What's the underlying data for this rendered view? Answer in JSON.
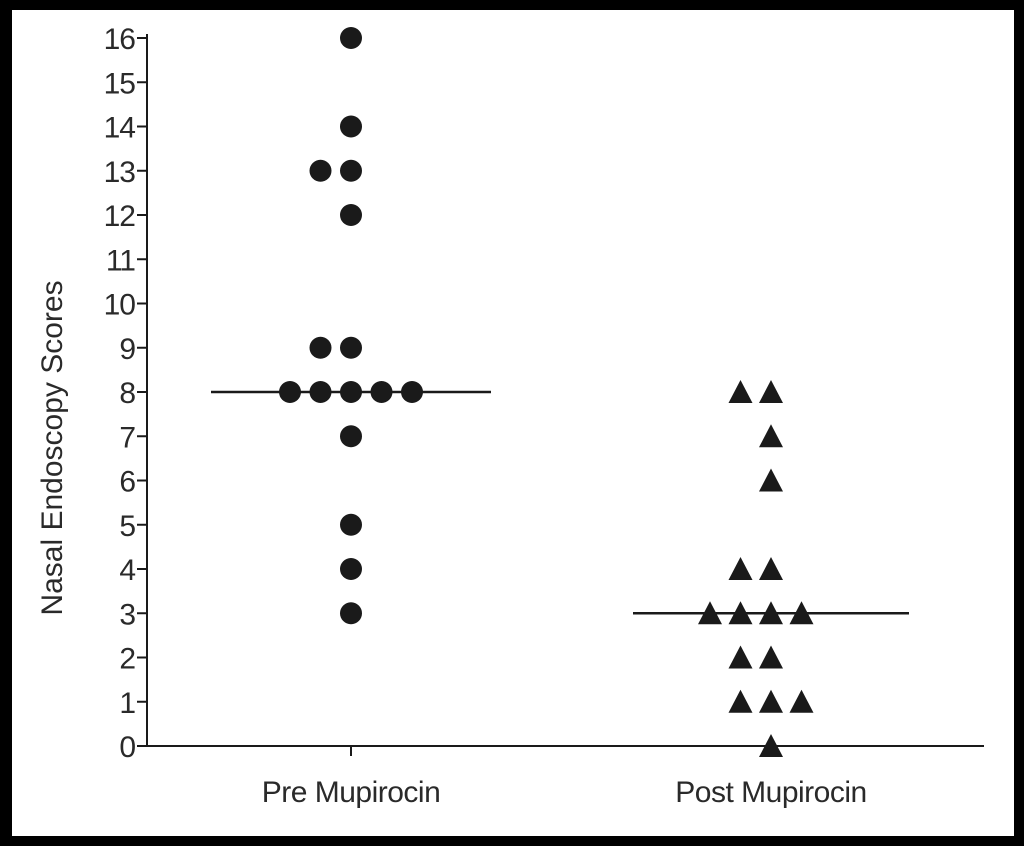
{
  "chart_data": {
    "type": "scatter",
    "title": "",
    "xlabel": "",
    "ylabel": "Nasal Endoscopy Scores",
    "ylim": [
      0,
      16
    ],
    "yticks": [
      "0",
      "1",
      "2",
      "3",
      "4",
      "5",
      "6",
      "7",
      "8",
      "9",
      "10",
      "11",
      "12",
      "13",
      "14",
      "15",
      "16"
    ],
    "grid": false,
    "legend": "none",
    "categories": [
      "Pre Mupirocin",
      "Post Mupirocin"
    ],
    "series": [
      {
        "category": "Pre Mupirocin",
        "marker": "circle",
        "color": "#1a1a1a",
        "values": [
          16,
          14,
          13,
          13,
          12,
          9,
          9,
          8,
          8,
          8,
          8,
          8,
          7,
          5,
          4,
          3
        ],
        "median": 8
      },
      {
        "category": "Post Mupirocin",
        "marker": "triangle",
        "color": "#1a1a1a",
        "values": [
          8,
          8,
          7,
          6,
          4,
          4,
          3,
          3,
          3,
          3,
          2,
          2,
          1,
          1,
          1,
          0
        ],
        "median": 3
      }
    ]
  }
}
